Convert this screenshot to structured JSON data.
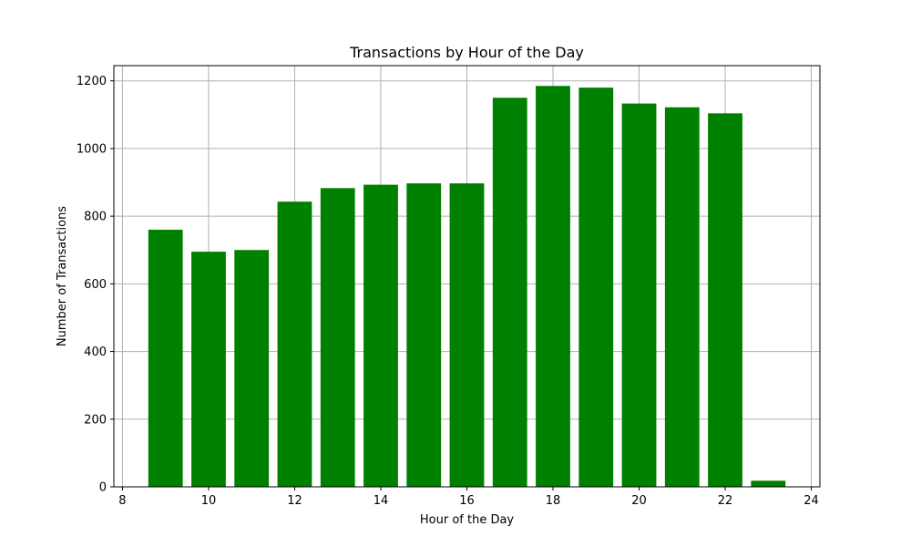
{
  "chart_data": {
    "type": "bar",
    "title": "Transactions by Hour of the Day",
    "xlabel": "Hour of the Day",
    "ylabel": "Number of Transactions",
    "x": [
      9,
      10,
      11,
      12,
      13,
      14,
      15,
      16,
      17,
      18,
      19,
      20,
      21,
      22,
      23
    ],
    "values": [
      760,
      695,
      700,
      843,
      883,
      893,
      897,
      897,
      1150,
      1185,
      1180,
      1133,
      1122,
      1104,
      18
    ],
    "bar_width": 0.8,
    "xlim": [
      7.8,
      24.2
    ],
    "ylim": [
      0,
      1245
    ],
    "xticks": [
      8,
      10,
      12,
      14,
      16,
      18,
      20,
      22,
      24
    ],
    "yticks": [
      0,
      200,
      400,
      600,
      800,
      1000,
      1200
    ],
    "grid": true,
    "legend": "none",
    "bar_color": "#008000",
    "grid_color": "#b0b0b0"
  }
}
